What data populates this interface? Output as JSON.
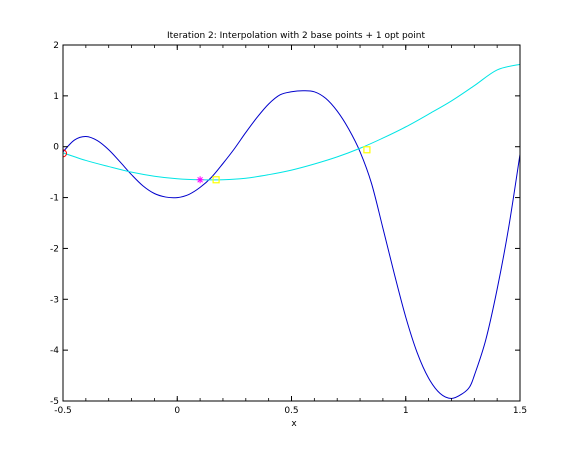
{
  "chart_data": {
    "type": "line",
    "title": "Iteration 2: Interpolation with 2 base points + 1 opt point",
    "xlabel": "x",
    "ylabel": "",
    "xlim": [
      -0.5,
      1.5
    ],
    "ylim": [
      -5,
      2
    ],
    "grid": false,
    "x_ticks": [
      -0.5,
      0,
      0.5,
      1,
      1.5
    ],
    "x_tick_labels": [
      "-0.5",
      "0",
      "0.5",
      "1",
      "1.5"
    ],
    "y_ticks": [
      -5,
      -4,
      -3,
      -2,
      -1,
      0,
      1,
      2
    ],
    "y_tick_labels": [
      "-5",
      "-4",
      "-3",
      "-2",
      "-1",
      "0",
      "1",
      "2"
    ],
    "series": [
      {
        "color": "#0000cc",
        "style": "line",
        "x": [
          -0.5,
          -0.45,
          -0.4,
          -0.35,
          -0.3,
          -0.25,
          -0.2,
          -0.15,
          -0.1,
          -0.05,
          0.0,
          0.05,
          0.1,
          0.15,
          0.2,
          0.25,
          0.3,
          0.35,
          0.4,
          0.45,
          0.5,
          0.55,
          0.6,
          0.65,
          0.7,
          0.75,
          0.8,
          0.85,
          0.9,
          0.95,
          1.0,
          1.05,
          1.1,
          1.15,
          1.2,
          1.25,
          1.28,
          1.3,
          1.35,
          1.4,
          1.45,
          1.5
        ],
        "y": [
          -0.1,
          0.13,
          0.2,
          0.12,
          -0.06,
          -0.3,
          -0.55,
          -0.77,
          -0.92,
          -0.99,
          -1.0,
          -0.94,
          -0.8,
          -0.6,
          -0.33,
          -0.04,
          0.28,
          0.58,
          0.84,
          1.02,
          1.08,
          1.1,
          1.08,
          0.95,
          0.7,
          0.35,
          -0.1,
          -0.72,
          -1.6,
          -2.5,
          -3.35,
          -4.05,
          -4.55,
          -4.85,
          -4.95,
          -4.85,
          -4.72,
          -4.5,
          -3.8,
          -2.8,
          -1.6,
          -0.15
        ]
      },
      {
        "color": "#00e5e5",
        "style": "line",
        "x": [
          -0.5,
          -0.4,
          -0.3,
          -0.2,
          -0.1,
          0.0,
          0.1,
          0.2,
          0.3,
          0.4,
          0.5,
          0.6,
          0.7,
          0.8,
          0.9,
          1.0,
          1.1,
          1.2,
          1.3,
          1.4,
          1.5
        ],
        "y": [
          -0.12,
          -0.27,
          -0.39,
          -0.5,
          -0.58,
          -0.63,
          -0.65,
          -0.65,
          -0.62,
          -0.55,
          -0.46,
          -0.34,
          -0.2,
          -0.03,
          0.17,
          0.39,
          0.64,
          0.9,
          1.2,
          1.51,
          1.62
        ]
      }
    ],
    "markers": [
      {
        "x": -0.5,
        "y": -0.13,
        "symbol": "circle",
        "color": "#ff0000"
      },
      {
        "x": 0.1,
        "y": -0.65,
        "symbol": "star",
        "color": "#ff00ff"
      },
      {
        "x": 0.17,
        "y": -0.65,
        "symbol": "square",
        "color": "#ffff00"
      },
      {
        "x": 0.83,
        "y": -0.06,
        "symbol": "square",
        "color": "#ffff00"
      }
    ]
  }
}
